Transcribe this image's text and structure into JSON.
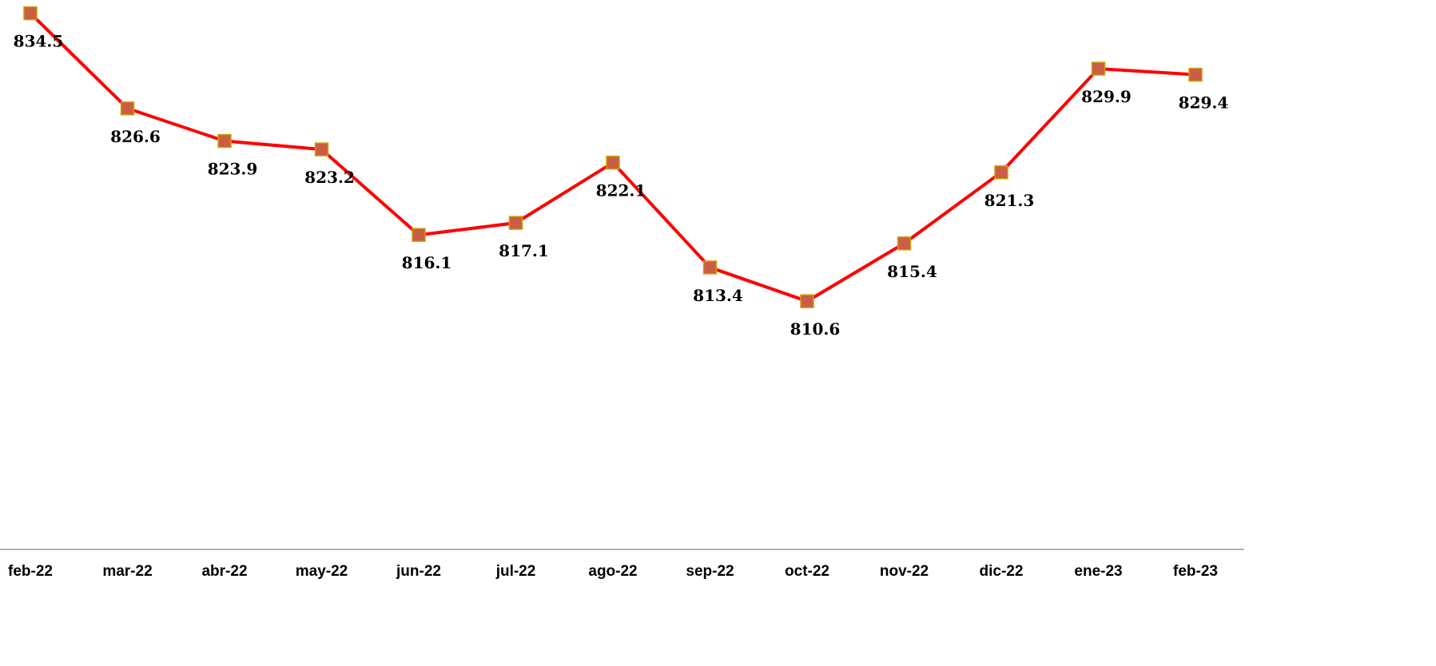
{
  "chart_data": {
    "type": "line",
    "categories": [
      "feb-22",
      "mar-22",
      "abr-22",
      "may-22",
      "jun-22",
      "jul-22",
      "ago-22",
      "sep-22",
      "oct-22",
      "nov-22",
      "dic-22",
      "ene-23",
      "feb-23"
    ],
    "series": [
      {
        "color": "#ff0000",
        "marker_color": "#cd5c45",
        "values": [
          834.5,
          826.6,
          823.9,
          823.2,
          816.1,
          817.1,
          822.1,
          813.4,
          810.6,
          815.4,
          821.3,
          829.9,
          829.4
        ]
      }
    ],
    "ylim": [
      790,
      835.6
    ]
  }
}
